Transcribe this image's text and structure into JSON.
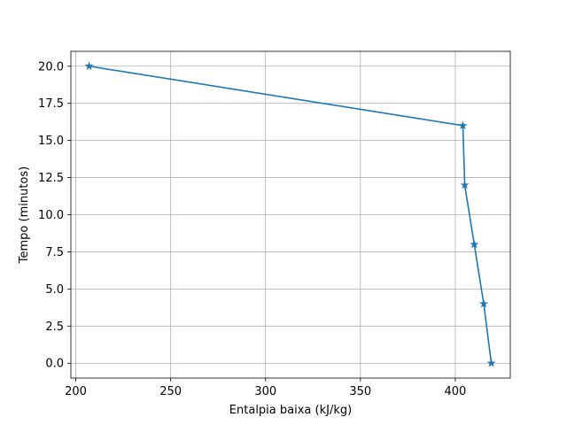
{
  "chart_data": {
    "type": "line",
    "title": "",
    "xlabel": "Entalpia baixa (kJ/kg)",
    "ylabel": "Tempo (minutos)",
    "xlim": [
      197.4,
      429.0
    ],
    "ylim": [
      -1.0,
      21.0
    ],
    "xticks": [
      200,
      250,
      300,
      350,
      400
    ],
    "xtick_labels": [
      "200",
      "250",
      "300",
      "350",
      "400"
    ],
    "yticks": [
      0.0,
      2.5,
      5.0,
      7.5,
      10.0,
      12.5,
      15.0,
      17.5,
      20.0
    ],
    "ytick_labels": [
      "0.0",
      "2.5",
      "5.0",
      "7.5",
      "10.0",
      "12.5",
      "15.0",
      "17.5",
      "20.0"
    ],
    "grid": true,
    "marker": "star",
    "color": "#1f77b4",
    "series": [
      {
        "x": [
          419,
          415,
          410,
          405,
          404,
          207
        ],
        "y": [
          0,
          4,
          8,
          12,
          16,
          20
        ]
      }
    ]
  }
}
